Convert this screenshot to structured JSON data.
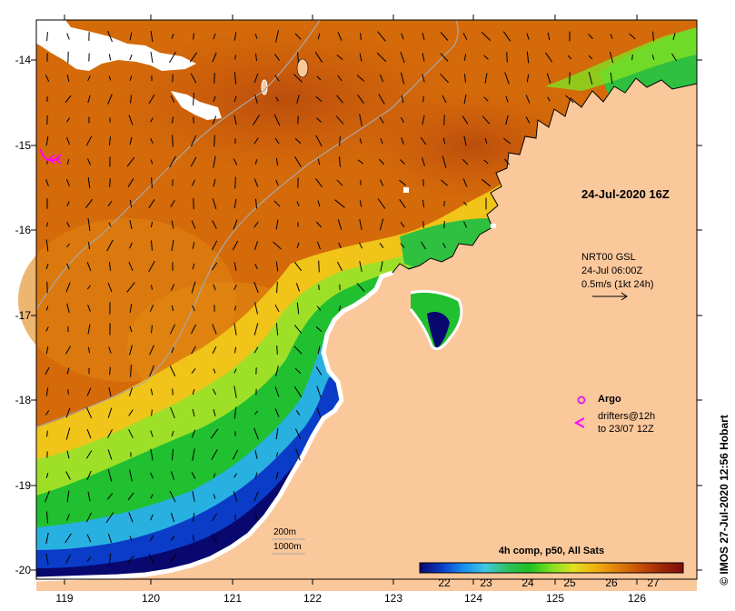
{
  "map": {
    "latitude_labels": [
      "-14",
      "-15",
      "-16",
      "-17",
      "-18",
      "-19",
      "-20"
    ],
    "longitude_labels": [
      "119",
      "120",
      "121",
      "122",
      "123",
      "124",
      "125",
      "126"
    ],
    "timestamp": "24-Jul-2020 16Z"
  },
  "vector_legend": {
    "title": "NRT00 GSL",
    "time": "24-Jul 06:00Z",
    "scale": "0.5m/s (1kt 24h)"
  },
  "legend": {
    "argo": "Argo",
    "drifters_line1": "drifters@12h",
    "drifters_line2": "to 23/07 12Z",
    "isobath_200": "200m",
    "isobath_1000": "1000m"
  },
  "colorbar": {
    "title": "4h comp, p50, All Sats",
    "ticks": [
      "22",
      "23",
      "24",
      "25",
      "26",
      "27"
    ],
    "colors": [
      "#08086e",
      "#0a3cc8",
      "#1a8ef0",
      "#3ec8e0",
      "#30c060",
      "#20c020",
      "#80e020",
      "#e0e020",
      "#f0b010",
      "#e08008",
      "#c85008",
      "#a02808",
      "#800c08"
    ]
  },
  "credit": "© IMOS 27-Jul-2020 12:56 Hobart",
  "colors": {
    "land": "#fbc89c",
    "cloud": "#ffffff",
    "argo": "#e020e0",
    "drifter": "#ff00ff",
    "isobath": "#a8a8a8"
  }
}
